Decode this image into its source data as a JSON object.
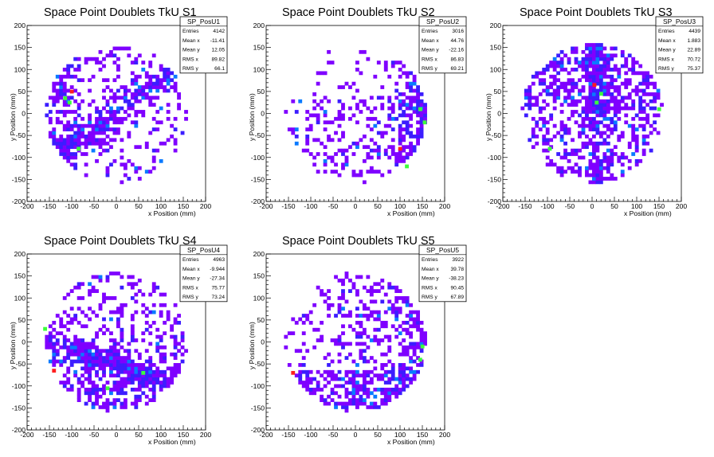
{
  "chart_data": [
    {
      "type": "heatmap",
      "title": "Space Point Doublets TkU S1",
      "xlabel": "x Position (mm)",
      "ylabel": "y Position (mm)",
      "xlim": [
        -200,
        200
      ],
      "ylim": [
        -200,
        200
      ],
      "ticks": [
        "-200",
        "-150",
        "-100",
        "-50",
        "0",
        "50",
        "100",
        "150",
        "200"
      ],
      "stats": {
        "name": "SP_PosU1",
        "rows": [
          {
            "label": "Entries",
            "value": "4142"
          },
          {
            "label": "Mean x",
            "value": "-11.41"
          },
          {
            "label": "Mean y",
            "value": "12.05"
          },
          {
            "label": "RMS x",
            "value": "89.82"
          },
          {
            "label": "RMS y",
            "value": "66.1"
          }
        ]
      },
      "pattern": "band",
      "hotspots": [
        [
          -100,
          50,
          4
        ],
        [
          -115,
          35,
          3
        ],
        [
          -105,
          25,
          3
        ],
        [
          -85,
          -80,
          3
        ]
      ],
      "seed": 11
    },
    {
      "type": "heatmap",
      "title": "Space Point Doublets TkU S2",
      "xlabel": "x Position (mm)",
      "ylabel": "y Position (mm)",
      "xlim": [
        -200,
        200
      ],
      "ylim": [
        -200,
        200
      ],
      "ticks": [
        "-200",
        "-150",
        "-100",
        "-50",
        "0",
        "50",
        "100",
        "150",
        "200"
      ],
      "stats": {
        "name": "SP_PosU2",
        "rows": [
          {
            "label": "Entries",
            "value": "3016"
          },
          {
            "label": "Mean x",
            "value": "44.76"
          },
          {
            "label": "Mean y",
            "value": "-22.16"
          },
          {
            "label": "RMS x",
            "value": "86.83"
          },
          {
            "label": "RMS y",
            "value": "69.21"
          }
        ]
      },
      "pattern": "right",
      "hotspots": [
        [
          155,
          -20,
          3
        ],
        [
          145,
          10,
          3
        ],
        [
          100,
          -80,
          4
        ],
        [
          115,
          -120,
          3
        ]
      ],
      "seed": 22
    },
    {
      "type": "heatmap",
      "title": "Space Point Doublets TkU S3",
      "xlabel": "x Position (mm)",
      "ylabel": "y Position (mm)",
      "xlim": [
        -200,
        200
      ],
      "ylim": [
        -200,
        200
      ],
      "ticks": [
        "-200",
        "-150",
        "-100",
        "-50",
        "0",
        "50",
        "100",
        "150",
        "200"
      ],
      "stats": {
        "name": "SP_PosU3",
        "rows": [
          {
            "label": "Entries",
            "value": "4439"
          },
          {
            "label": "Mean x",
            "value": "1.883"
          },
          {
            "label": "Mean y",
            "value": "22.89"
          },
          {
            "label": "RMS x",
            "value": "70.72"
          },
          {
            "label": "RMS y",
            "value": "75.37"
          }
        ]
      },
      "pattern": "cross",
      "hotspots": [
        [
          5,
          65,
          4
        ],
        [
          20,
          45,
          3
        ],
        [
          10,
          25,
          3
        ],
        [
          -95,
          -80,
          3
        ],
        [
          150,
          10,
          3
        ]
      ],
      "seed": 33
    },
    {
      "type": "heatmap",
      "title": "Space Point Doublets TkU S4",
      "xlabel": "x Position (mm)",
      "ylabel": "y Position (mm)",
      "xlim": [
        -200,
        200
      ],
      "ylim": [
        -200,
        200
      ],
      "ticks": [
        "-200",
        "-150",
        "-100",
        "-50",
        "0",
        "50",
        "100",
        "150",
        "200"
      ],
      "stats": {
        "name": "SP_PosU4",
        "rows": [
          {
            "label": "Entries",
            "value": "4963"
          },
          {
            "label": "Mean x",
            "value": "-9.944"
          },
          {
            "label": "Mean y",
            "value": "-27.34"
          },
          {
            "label": "RMS x",
            "value": "75.77"
          },
          {
            "label": "RMS y",
            "value": "73.24"
          }
        ]
      },
      "pattern": "lower",
      "hotspots": [
        [
          -140,
          -65,
          4
        ],
        [
          60,
          -70,
          3
        ],
        [
          -20,
          -105,
          3
        ],
        [
          -160,
          30,
          3
        ]
      ],
      "seed": 44
    },
    {
      "type": "heatmap",
      "title": "Space Point Doublets TkU S5",
      "xlabel": "x Position (mm)",
      "ylabel": "y Position (mm)",
      "xlim": [
        -200,
        200
      ],
      "ylim": [
        -200,
        200
      ],
      "ticks": [
        "-200",
        "-150",
        "-100",
        "-50",
        "0",
        "50",
        "100",
        "150",
        "200"
      ],
      "stats": {
        "name": "SP_PosU5",
        "rows": [
          {
            "label": "Entries",
            "value": "3922"
          },
          {
            "label": "Mean x",
            "value": "39.78"
          },
          {
            "label": "Mean y",
            "value": "-38.23"
          },
          {
            "label": "RMS x",
            "value": "90.45"
          },
          {
            "label": "RMS y",
            "value": "67.89"
          }
        ]
      },
      "pattern": "rightlow",
      "hotspots": [
        [
          -140,
          -70,
          4
        ],
        [
          150,
          -10,
          3
        ],
        [
          145,
          -40,
          3
        ]
      ],
      "seed": 55
    }
  ],
  "palette": [
    "#7f00ff",
    "#3c1dff",
    "#0a7aff",
    "#00d2c8",
    "#3cff3c",
    "#ff1e1e"
  ]
}
